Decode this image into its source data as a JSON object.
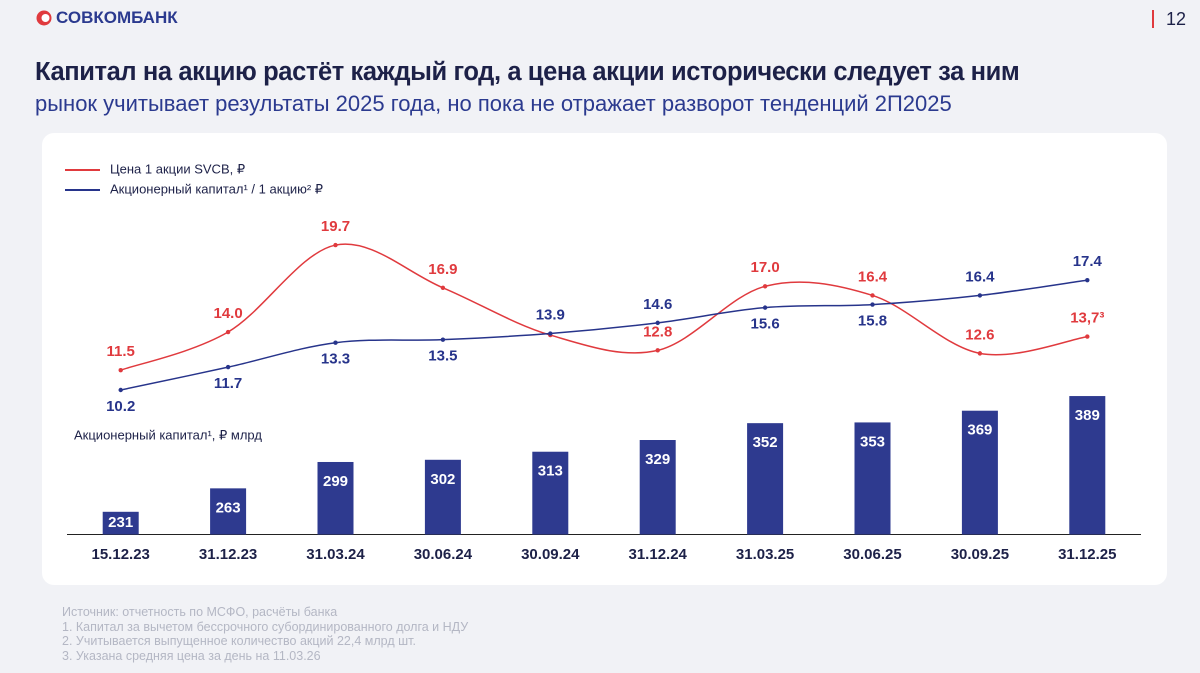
{
  "header": {
    "logo": "СОВКОМБАНК",
    "page": "12"
  },
  "title": "Капитал на акцию растёт каждый год, а цена акции исторически следует за ним",
  "subtitle": "рынок учитывает результаты 2025 года, но пока не отражает разворот тенденций 2П2025",
  "chart_data": {
    "type": "combo",
    "categories": [
      "15.12.23",
      "31.12.23",
      "31.03.24",
      "30.06.24",
      "30.09.24",
      "31.12.24",
      "31.03.25",
      "30.06.25",
      "30.09.25",
      "31.12.25"
    ],
    "series": [
      {
        "name": "Цена 1 акции SVCB, ₽",
        "color": "#e03a3e",
        "type": "line",
        "values": [
          11.5,
          14.0,
          19.7,
          16.9,
          13.8,
          12.8,
          17.0,
          16.4,
          12.6,
          13.7
        ],
        "value_labels": [
          "11.5",
          "14.0",
          "19.7",
          "16.9",
          null,
          "12.8",
          "17.0",
          "16.4",
          "12.6",
          "13,7³"
        ]
      },
      {
        "name": "Акционерный капитал¹ / 1 акцию² ₽",
        "color": "#27348b",
        "type": "line",
        "values": [
          10.2,
          11.7,
          13.3,
          13.5,
          13.9,
          14.6,
          15.6,
          15.8,
          16.4,
          17.4
        ]
      },
      {
        "name": "Акционерный капитал¹, ₽ млрд",
        "color": "#2e3a8f",
        "type": "bar",
        "axis": "y2",
        "values": [
          231,
          263,
          299,
          302,
          313,
          329,
          352,
          353,
          369,
          389
        ]
      }
    ],
    "ylim": [
      0,
      20
    ],
    "y2lim": [
      200,
      400
    ]
  },
  "footnotes": [
    "Источник: отчетность по МСФО, расчёты банка",
    "1.   Капитал за вычетом бессрочного субординированного долга и НДУ",
    "2.   Учитывается выпущенное количество акций 22,4 млрд шт.",
    "3.   Указана средняя цена за день на 11.03.26"
  ]
}
